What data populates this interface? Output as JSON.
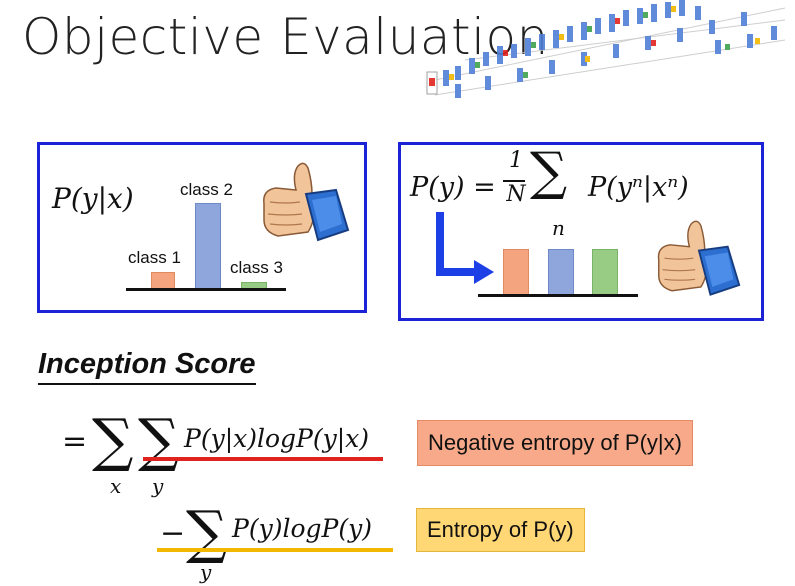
{
  "title": "Objective Evaluation",
  "left_box": {
    "formula": "P(y|x)",
    "class_labels": [
      "class 1",
      "class 2",
      "class 3"
    ],
    "bar_colors": [
      "#f4a57f",
      "#8fa6dc",
      "#98cc85"
    ]
  },
  "right_box": {
    "formula_lhs": "P(y) =",
    "frac_num": "1",
    "frac_den": "N",
    "sum_sub": "n",
    "formula_rhs": "P(yⁿ|xⁿ)",
    "bar_colors": [
      "#f4a57f",
      "#8fa6dc",
      "#98cc85"
    ]
  },
  "inception_score": {
    "heading": "Inception Score",
    "line1_expr": "P(y|x)logP(y|x)",
    "line1_sub_x": "x",
    "line1_sub_y": "y",
    "line2_expr": "P(y)logP(y)",
    "line2_sub_y": "y",
    "tag1": "Negative entropy of P(y|x)",
    "tag2": "Entropy of P(y)",
    "tag1_color": "#f7a98a",
    "tag2_color": "#ffd774",
    "underline1_color": "#e0231d",
    "underline2_color": "#f2b800"
  },
  "icons": [
    "network-diagram-icon",
    "thumbs-up-icon"
  ]
}
